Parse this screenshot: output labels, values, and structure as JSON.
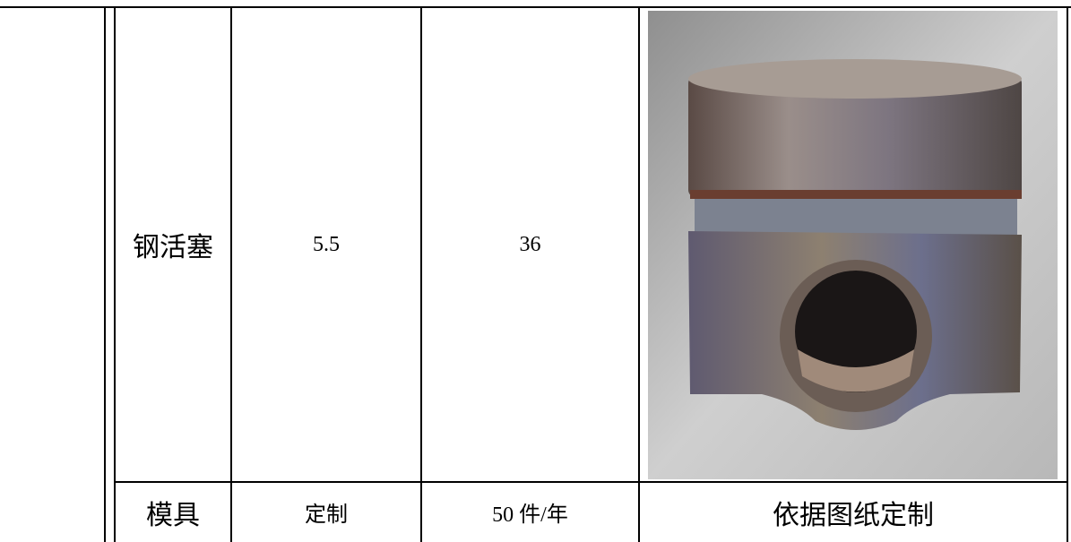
{
  "table": {
    "rows": [
      [
        "钢活塞",
        "5.5",
        "36"
      ],
      [
        "模具",
        "定制",
        "50 件/年",
        "依据图纸定制"
      ]
    ]
  }
}
